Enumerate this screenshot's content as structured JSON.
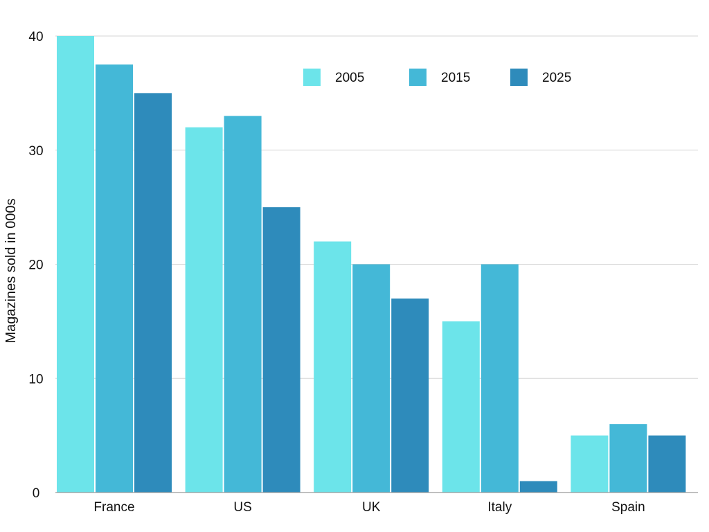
{
  "chart_data": {
    "type": "bar",
    "title": "",
    "xlabel": "",
    "ylabel": "Magazines sold in 000s",
    "ylim": [
      0,
      40
    ],
    "yticks": [
      0,
      10,
      20,
      30,
      40
    ],
    "grid": true,
    "legend_position": "top-right",
    "categories": [
      "France",
      "US",
      "UK",
      "Italy",
      "Spain"
    ],
    "series": [
      {
        "name": "2005",
        "color": "#6ce4ea",
        "values": [
          40,
          32,
          22,
          15,
          5
        ]
      },
      {
        "name": "2015",
        "color": "#44b8d7",
        "values": [
          37.5,
          33,
          20,
          20,
          6
        ]
      },
      {
        "name": "2025",
        "color": "#2e8bbb",
        "values": [
          35,
          25,
          17,
          1,
          5
        ]
      }
    ]
  }
}
